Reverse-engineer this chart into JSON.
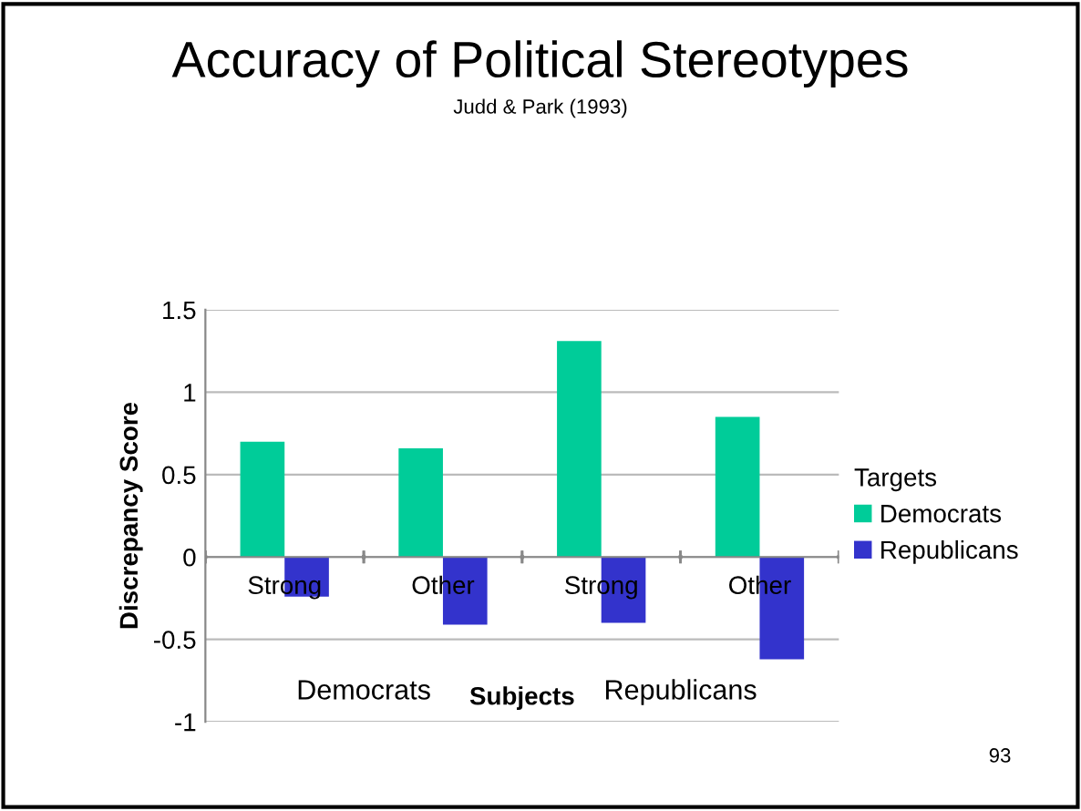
{
  "chart_data": {
    "type": "bar",
    "title": "Accuracy of Political Stereotypes",
    "subtitle": "Judd & Park (1993)",
    "xlabel": "Subjects",
    "ylabel": "Discrepancy Score",
    "legend_title": "Targets",
    "categories": [
      "Strong",
      "Other",
      "Strong",
      "Other"
    ],
    "series": [
      {
        "name": "Democrats",
        "color": "#00cc99",
        "values": [
          0.7,
          0.66,
          1.31,
          0.85
        ]
      },
      {
        "name": "Republicans",
        "color": "#3333cc",
        "values": [
          -0.24,
          -0.41,
          -0.4,
          -0.62
        ]
      }
    ],
    "ylim": [
      -1,
      1.5
    ],
    "yticks": [
      -1,
      -0.5,
      0,
      0.5,
      1,
      1.5
    ],
    "grid": "y",
    "legend": "right",
    "annotations": [
      "Democrats",
      "Republicans",
      "93"
    ]
  }
}
